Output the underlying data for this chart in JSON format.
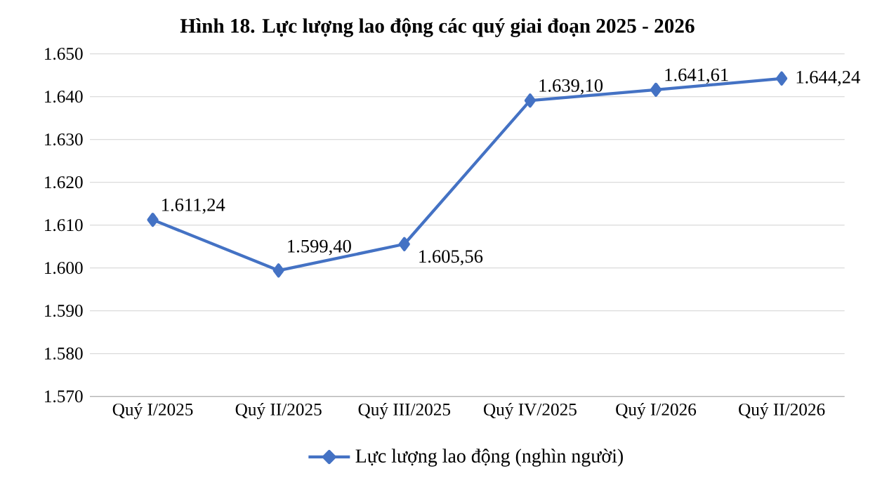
{
  "chart_data": {
    "type": "line",
    "title": "Hình 18. Lực lượng lao động các quý giai đoạn 2025 - 2026",
    "categories": [
      "Quý I/2025",
      "Quý II/2025",
      "Quý III/2025",
      "Quý IV/2025",
      "Quý I/2026",
      "Quý II/2026"
    ],
    "series": [
      {
        "name": "Lực lượng lao động (nghìn người)",
        "color": "#4472c4",
        "values": [
          1611.24,
          1599.4,
          1605.56,
          1639.1,
          1641.61,
          1644.24
        ],
        "value_labels": [
          "1.611,24",
          "1.599,40",
          "1.605,56",
          "1.639,10",
          "1.641,61",
          "1.644,24"
        ]
      }
    ],
    "ylim": [
      1570,
      1650
    ],
    "yticks": [
      {
        "value": 1570,
        "label": "1.570"
      },
      {
        "value": 1580,
        "label": "1.580"
      },
      {
        "value": 1590,
        "label": "1.590"
      },
      {
        "value": 1600,
        "label": "1.600"
      },
      {
        "value": 1610,
        "label": "1.610"
      },
      {
        "value": 1620,
        "label": "1.620"
      },
      {
        "value": 1630,
        "label": "1.630"
      },
      {
        "value": 1640,
        "label": "1.640"
      },
      {
        "value": 1650,
        "label": "1.650"
      }
    ],
    "grid": "y",
    "legend": "bottom",
    "marker": "diamond",
    "line_style": "solid"
  }
}
